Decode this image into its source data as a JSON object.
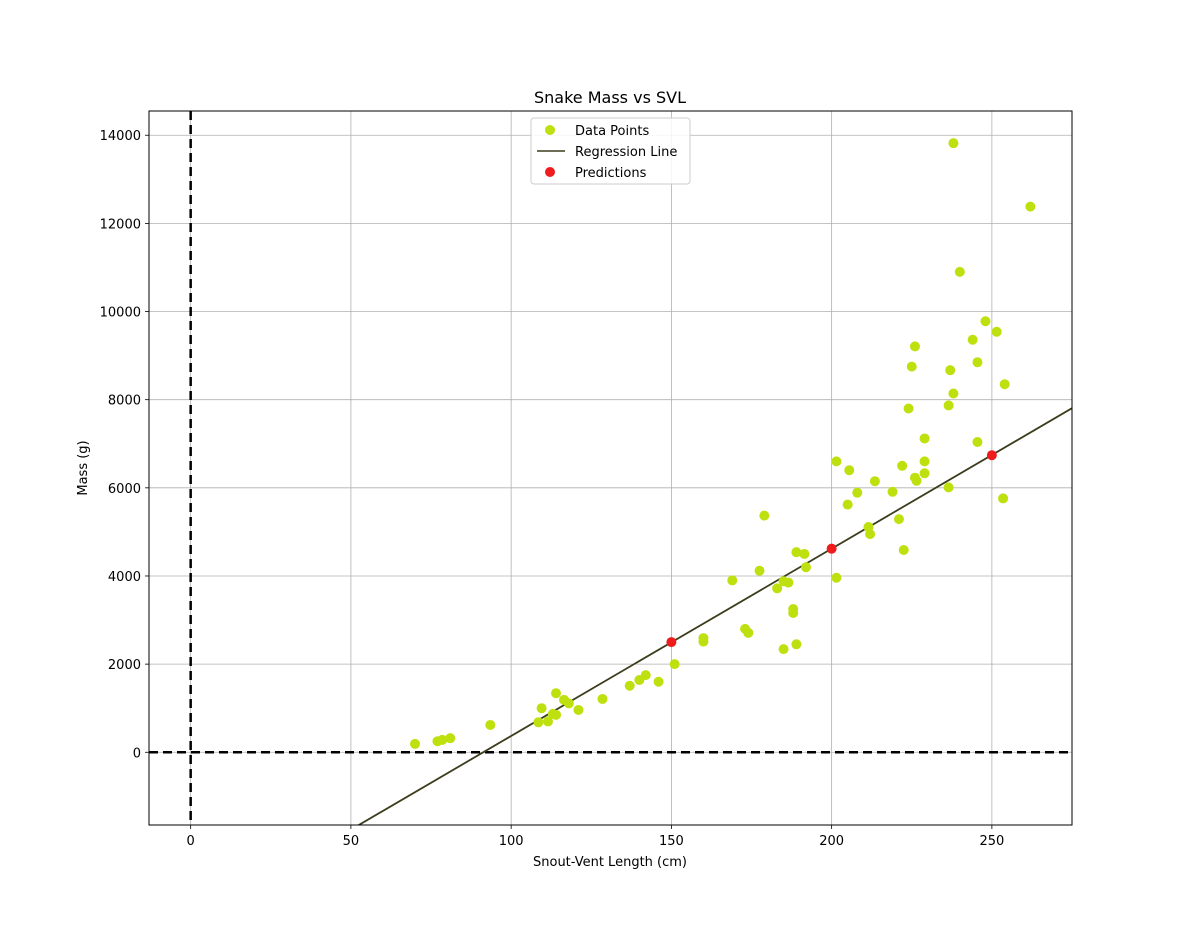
{
  "chart_data": {
    "type": "scatter",
    "title": "Snake Mass vs SVL",
    "xlabel": "Snout-Vent Length (cm)",
    "ylabel": "Mass (g)",
    "xlim": [
      -13,
      275
    ],
    "ylim": [
      -1650,
      14550
    ],
    "xticks": [
      0,
      50,
      100,
      150,
      200,
      250
    ],
    "yticks": [
      0,
      2000,
      4000,
      6000,
      8000,
      10000,
      12000,
      14000
    ],
    "grid": true,
    "legend_position": "top-center",
    "reference_lines": {
      "x": 0,
      "y": 0,
      "style": "dashed",
      "color": "#000000"
    },
    "series": [
      {
        "name": "Data Points",
        "kind": "scatter",
        "color": "#bfe00f",
        "points": [
          [
            70,
            190
          ],
          [
            77,
            250
          ],
          [
            78.5,
            280
          ],
          [
            81,
            320
          ],
          [
            93.5,
            620
          ],
          [
            108.5,
            680
          ],
          [
            109.5,
            1000
          ],
          [
            111.5,
            700
          ],
          [
            113,
            870
          ],
          [
            114,
            850
          ],
          [
            114,
            1340
          ],
          [
            116.5,
            1190
          ],
          [
            118,
            1110
          ],
          [
            121,
            960
          ],
          [
            128.5,
            1210
          ],
          [
            137,
            1510
          ],
          [
            140,
            1640
          ],
          [
            142,
            1750
          ],
          [
            146,
            1600
          ],
          [
            151,
            2000
          ],
          [
            160,
            2590
          ],
          [
            160,
            2510
          ],
          [
            169,
            3900
          ],
          [
            173,
            2800
          ],
          [
            174,
            2710
          ],
          [
            177.5,
            4120
          ],
          [
            179,
            5370
          ],
          [
            183,
            3720
          ],
          [
            185,
            2340
          ],
          [
            185,
            3880
          ],
          [
            186.5,
            3850
          ],
          [
            188,
            3250
          ],
          [
            188,
            3160
          ],
          [
            189,
            2450
          ],
          [
            189,
            4540
          ],
          [
            191.5,
            4500
          ],
          [
            192,
            4200
          ],
          [
            201.5,
            3960
          ],
          [
            201.5,
            6600
          ],
          [
            205,
            5620
          ],
          [
            205.5,
            6400
          ],
          [
            208,
            5890
          ],
          [
            211.5,
            5110
          ],
          [
            212,
            4950
          ],
          [
            213.5,
            6150
          ],
          [
            219,
            5910
          ],
          [
            221,
            5290
          ],
          [
            222,
            6500
          ],
          [
            222.5,
            4590
          ],
          [
            224,
            7800
          ],
          [
            225,
            8750
          ],
          [
            226,
            9210
          ],
          [
            226,
            6230
          ],
          [
            226.5,
            6160
          ],
          [
            229,
            7120
          ],
          [
            229,
            6600
          ],
          [
            229,
            6330
          ],
          [
            236.5,
            7870
          ],
          [
            236.5,
            6010
          ],
          [
            237,
            8670
          ],
          [
            238,
            13820
          ],
          [
            238,
            8140
          ],
          [
            240,
            10900
          ],
          [
            244,
            9360
          ],
          [
            245.5,
            8850
          ],
          [
            245.5,
            7040
          ],
          [
            248,
            9780
          ],
          [
            251.5,
            9540
          ],
          [
            253.5,
            5760
          ],
          [
            254,
            8350
          ],
          [
            262,
            12380
          ]
        ]
      },
      {
        "name": "Regression Line",
        "kind": "line",
        "color": "#3d3d1e",
        "slope": 42.5,
        "intercept": -3880
      },
      {
        "name": "Predictions",
        "kind": "scatter",
        "color": "#ee1c1c",
        "points": [
          [
            150,
            2500
          ],
          [
            200,
            4620
          ],
          [
            250,
            6740
          ]
        ]
      }
    ]
  }
}
